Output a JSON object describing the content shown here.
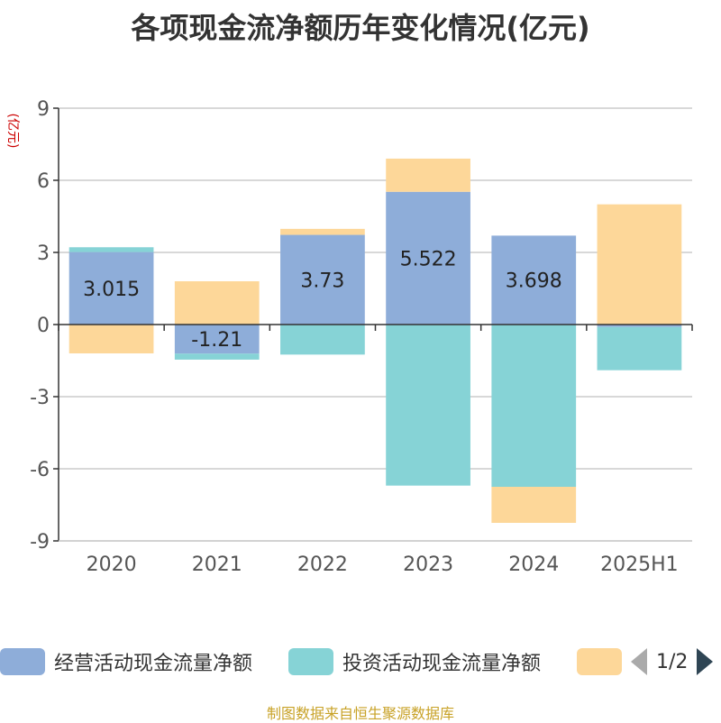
{
  "title": "各项现金流净额历年变化情况(亿元)",
  "source": "制图数据来自恒生聚源数据库",
  "colors": {
    "operating": "#8eadd9",
    "investing": "#86d3d6",
    "financing": "#fdd799"
  },
  "legend_pager": "1/2",
  "chart_data": {
    "type": "bar",
    "stacked": true,
    "title": "各项现金流净额历年变化情况(亿元)",
    "ylabel": "(亿元)",
    "ylim": [
      -9,
      9
    ],
    "yticks": [
      9,
      6,
      3,
      0,
      -3,
      -6,
      -9
    ],
    "categories": [
      "2020",
      "2021",
      "2022",
      "2023",
      "2024",
      "2025H1"
    ],
    "series": [
      {
        "name": "经营活动现金流量净额",
        "values": [
          3.015,
          -1.21,
          3.73,
          5.522,
          3.698,
          -0.1
        ],
        "labels": [
          "3.015",
          "-1.21",
          "3.73",
          "5.522",
          "3.698",
          ""
        ]
      },
      {
        "name": "投资活动现金流量净额",
        "values": [
          0.2,
          -0.25,
          -1.25,
          -6.7,
          -6.75,
          -1.8
        ]
      },
      {
        "name": "",
        "values": [
          -1.2,
          1.8,
          0.25,
          1.38,
          -1.5,
          5.0
        ]
      }
    ],
    "grid": true,
    "legend": "bottom"
  }
}
